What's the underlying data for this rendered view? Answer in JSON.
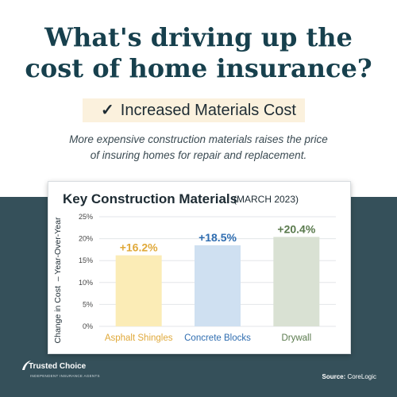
{
  "headline": {
    "line1": "What's driving up the",
    "line2": "cost of home insurance?"
  },
  "check": {
    "mark": "✓",
    "label": "Increased Materials Cost"
  },
  "subtitle": {
    "line1": "More expensive construction materials raises the price",
    "line2": "of insuring homes for repair and replacement."
  },
  "brand": {
    "name": "Trusted Choice",
    "tagline": "INDEPENDENT INSURANCE AGENTS"
  },
  "source": {
    "label": "Source:",
    "value": "CoreLogic"
  },
  "colors": {
    "background_dark": "#35505a",
    "headline": "#17404d",
    "highlight": "#fbf1dd"
  },
  "chart_data": {
    "type": "bar",
    "title": "Key Construction Materials",
    "subtitle": "(MARCH 2023)",
    "ylabel": "Change in Cost  – Year-Over-Year",
    "ylim": [
      0,
      25
    ],
    "yticks": [
      "0%",
      "5%",
      "10%",
      "15%",
      "20%",
      "25%"
    ],
    "categories": [
      "Asphalt Shingles",
      "Concrete Blocks",
      "Drywall"
    ],
    "values": [
      16.2,
      18.5,
      20.4
    ],
    "data_labels": [
      "+16.2%",
      "+18.5%",
      "+20.4%"
    ],
    "bar_colors": [
      "#fbecb6",
      "#cfe0f1",
      "#d9e1d3"
    ],
    "label_colors": [
      "#e0a93a",
      "#2f6db0",
      "#5a7a4d"
    ],
    "grid": true,
    "legend": "none"
  }
}
